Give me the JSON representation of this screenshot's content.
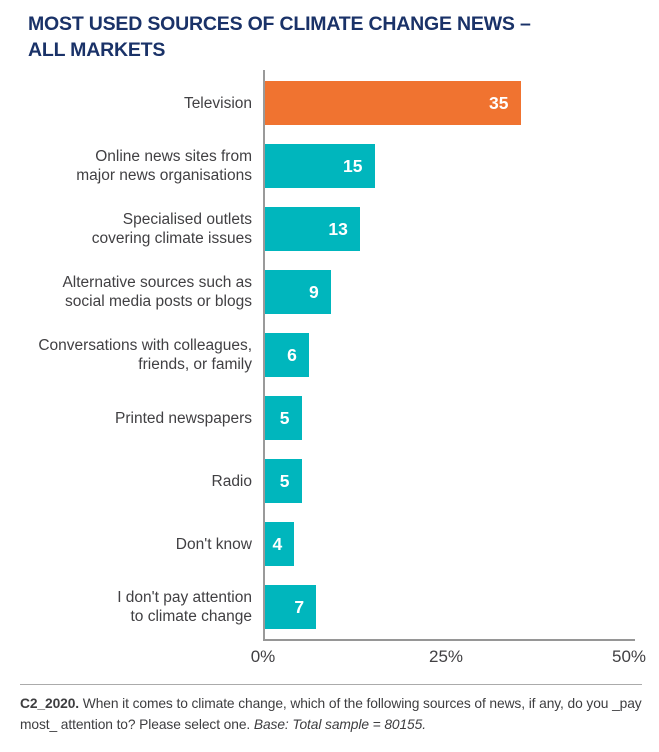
{
  "title": {
    "line1": "MOST USED SOURCES OF CLIMATE CHANGE NEWS –",
    "line2": "ALL MARKETS"
  },
  "chart_data": {
    "type": "bar",
    "orientation": "horizontal",
    "title": "MOST USED SOURCES OF CLIMATE CHANGE NEWS – ALL MARKETS",
    "categories": [
      "Television",
      "Online news sites from\nmajor news organisations",
      "Specialised outlets\ncovering climate issues",
      "Alternative sources such as\nsocial media posts or blogs",
      "Conversations with colleagues,\nfriends, or family",
      "Printed newspapers",
      "Radio",
      "Don't know",
      "I don't pay attention\nto climate change"
    ],
    "values": [
      35,
      15,
      13,
      9,
      6,
      5,
      5,
      4,
      7
    ],
    "xlabel": "",
    "ylabel": "",
    "xlim": [
      0,
      50
    ],
    "x_ticks": [
      "0%",
      "25%",
      "50%"
    ],
    "grid": false,
    "legend": false,
    "value_labels_inside_bars": true,
    "bar_colors": [
      "#F07330",
      "#00B6BD",
      "#00B6BD",
      "#00B6BD",
      "#00B6BD",
      "#00B6BD",
      "#00B6BD",
      "#00B6BD",
      "#00B6BD"
    ]
  },
  "colors": {
    "highlight_bar": "#F07330",
    "default_bar": "#00B6BD",
    "title_text": "#1A3268",
    "label_text": "#414043",
    "axis_line": "#969696",
    "value_text": "#FFFFFF"
  },
  "footnote": {
    "prefix": "C2_2020.",
    "question": " When it comes to climate change, which of the following sources of news, if any, do you _pay most_ attention to? Please select one. ",
    "base": "Base: Total sample = 80155."
  }
}
